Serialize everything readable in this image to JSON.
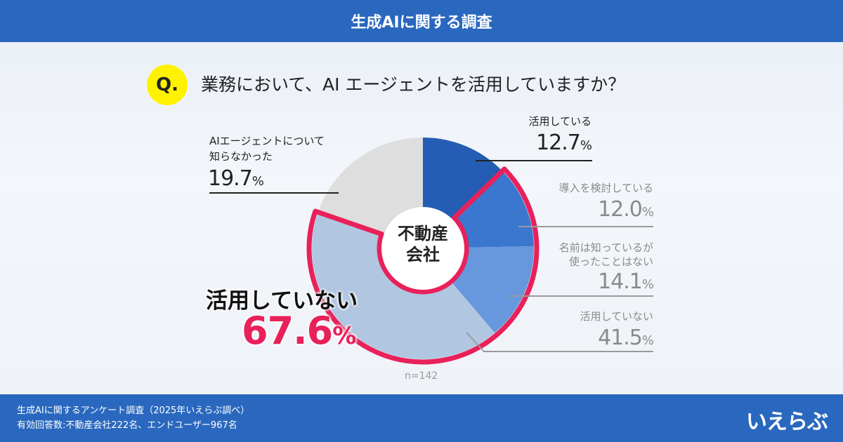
{
  "header": {
    "title": "生成AIに関する調査"
  },
  "question": {
    "badge": "Q.",
    "text": "業務において、AI エージェントを活用していますか？"
  },
  "center_label": [
    "不動産",
    "会社"
  ],
  "sample": "n=142",
  "highlight": {
    "label": "活用していない",
    "value": "67.6",
    "unit": "%"
  },
  "colors": {
    "brand": "#2a68bf",
    "highlight": "#e8215a",
    "badge": "#fff200"
  },
  "chart_data": {
    "type": "pie",
    "donut": true,
    "start": "top, clockwise",
    "slices": [
      {
        "label": "活用している",
        "value": 12.7,
        "color": "#245db3"
      },
      {
        "label": "導入を検討している",
        "value": 12.0,
        "color": "#3b77cf"
      },
      {
        "label": "名前は知っているが使ったことはない",
        "value": 14.1,
        "color": "#6797dc"
      },
      {
        "label": "活用していない",
        "value": 41.5,
        "color": "#b1c6e0"
      },
      {
        "label": "AIエージェントについて知らなかった",
        "value": 19.7,
        "color": "#dedede"
      }
    ],
    "label_lines": [
      [
        "活用している"
      ],
      [
        "導入を検討している"
      ],
      [
        "名前は知っているが",
        "使ったことはない"
      ],
      [
        "活用していない"
      ],
      [
        "AIエージェントについて",
        "知らなかった"
      ]
    ],
    "highlighted_slices": [
      1,
      2,
      3
    ]
  },
  "footer": {
    "line1": "生成AIに関するアンケート調査（2025年いえらぶ調べ）",
    "line2": "有効回答数:不動産会社222名、エンドユーザー967名",
    "logo": "いえらぶ"
  }
}
